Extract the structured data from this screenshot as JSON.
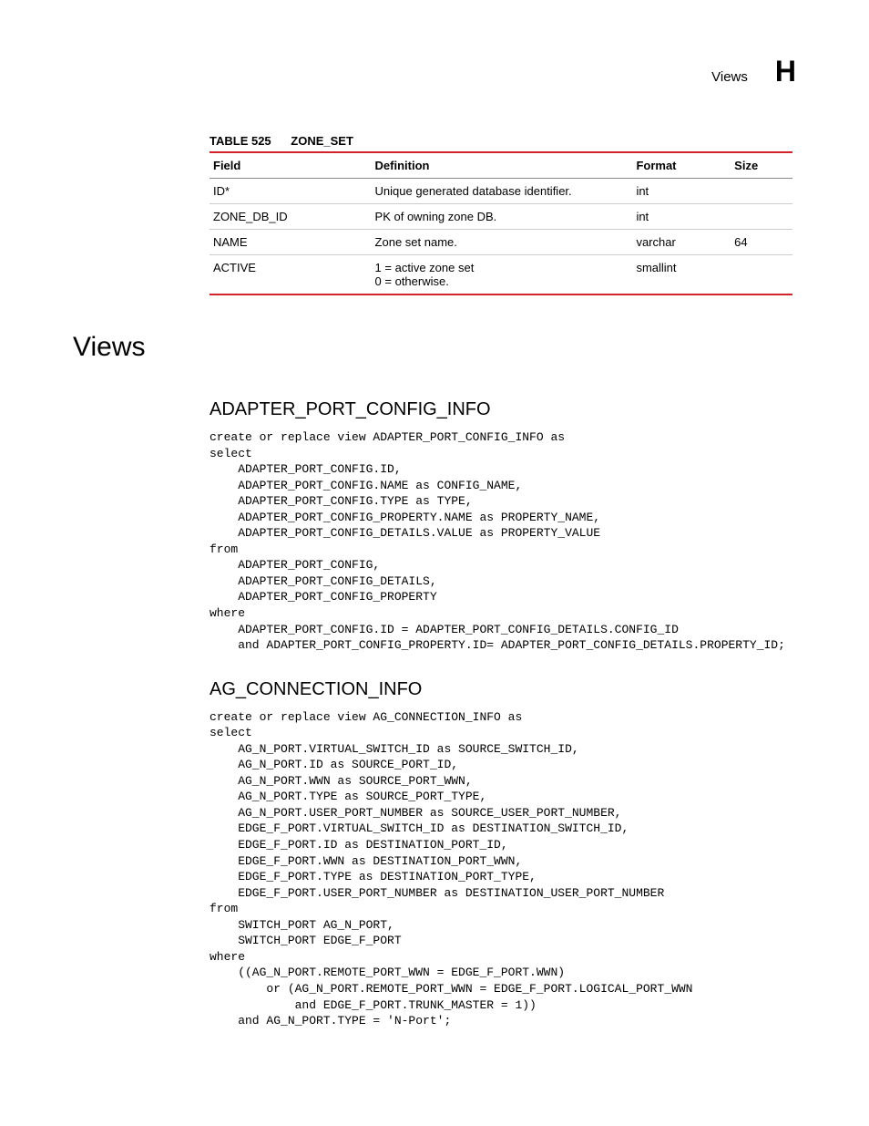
{
  "header": {
    "title": "Views",
    "letter": "H"
  },
  "table": {
    "caption_label": "TABLE 525",
    "caption_name": "ZONE_SET",
    "columns": [
      "Field",
      "Definition",
      "Format",
      "Size"
    ],
    "rows": [
      {
        "field": "ID*",
        "definition": "Unique generated database identifier.",
        "format": "int",
        "size": ""
      },
      {
        "field": "ZONE_DB_ID",
        "definition": "PK of owning zone DB.",
        "format": "int",
        "size": ""
      },
      {
        "field": "NAME",
        "definition": "Zone set name.",
        "format": "varchar",
        "size": "64"
      },
      {
        "field": "ACTIVE",
        "definition": "1 = active zone set\n0 = otherwise.",
        "format": "smallint",
        "size": ""
      }
    ]
  },
  "section_heading": "Views",
  "subsections": [
    {
      "title": "ADAPTER_PORT_CONFIG_INFO",
      "code": "create or replace view ADAPTER_PORT_CONFIG_INFO as\nselect\n    ADAPTER_PORT_CONFIG.ID,\n    ADAPTER_PORT_CONFIG.NAME as CONFIG_NAME,\n    ADAPTER_PORT_CONFIG.TYPE as TYPE,\n    ADAPTER_PORT_CONFIG_PROPERTY.NAME as PROPERTY_NAME,\n    ADAPTER_PORT_CONFIG_DETAILS.VALUE as PROPERTY_VALUE\nfrom\n    ADAPTER_PORT_CONFIG,\n    ADAPTER_PORT_CONFIG_DETAILS,\n    ADAPTER_PORT_CONFIG_PROPERTY\nwhere\n    ADAPTER_PORT_CONFIG.ID = ADAPTER_PORT_CONFIG_DETAILS.CONFIG_ID\n    and ADAPTER_PORT_CONFIG_PROPERTY.ID= ADAPTER_PORT_CONFIG_DETAILS.PROPERTY_ID;"
    },
    {
      "title": "AG_CONNECTION_INFO",
      "code": "create or replace view AG_CONNECTION_INFO as\nselect\n    AG_N_PORT.VIRTUAL_SWITCH_ID as SOURCE_SWITCH_ID,\n    AG_N_PORT.ID as SOURCE_PORT_ID,\n    AG_N_PORT.WWN as SOURCE_PORT_WWN,\n    AG_N_PORT.TYPE as SOURCE_PORT_TYPE,\n    AG_N_PORT.USER_PORT_NUMBER as SOURCE_USER_PORT_NUMBER,\n    EDGE_F_PORT.VIRTUAL_SWITCH_ID as DESTINATION_SWITCH_ID,\n    EDGE_F_PORT.ID as DESTINATION_PORT_ID,\n    EDGE_F_PORT.WWN as DESTINATION_PORT_WWN,\n    EDGE_F_PORT.TYPE as DESTINATION_PORT_TYPE,\n    EDGE_F_PORT.USER_PORT_NUMBER as DESTINATION_USER_PORT_NUMBER\nfrom\n    SWITCH_PORT AG_N_PORT,\n    SWITCH_PORT EDGE_F_PORT\nwhere\n    ((AG_N_PORT.REMOTE_PORT_WWN = EDGE_F_PORT.WWN)\n        or (AG_N_PORT.REMOTE_PORT_WWN = EDGE_F_PORT.LOGICAL_PORT_WWN\n            and EDGE_F_PORT.TRUNK_MASTER = 1))\n    and AG_N_PORT.TYPE = 'N-Port';"
    }
  ]
}
